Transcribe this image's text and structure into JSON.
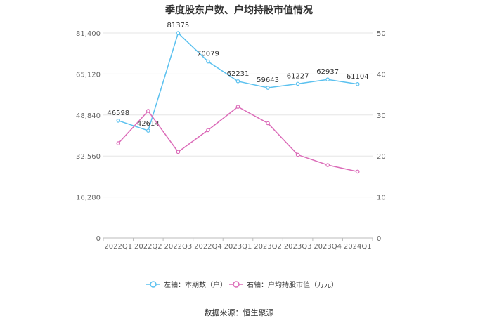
{
  "chart_data": {
    "type": "line",
    "title": "季度股东户数、户均持股市值情况",
    "categories": [
      "2022Q1",
      "2022Q2",
      "2022Q3",
      "2022Q4",
      "2023Q1",
      "2023Q2",
      "2023Q3",
      "2023Q4",
      "2024Q1"
    ],
    "left_axis": {
      "ticks": [
        "0",
        "16,280",
        "32,560",
        "48,840",
        "65,120",
        "81,400"
      ],
      "min": 0,
      "max": 81400
    },
    "right_axis": {
      "ticks": [
        "0",
        "10",
        "20",
        "30",
        "40",
        "50"
      ],
      "min": 0,
      "max": 50
    },
    "grid": true,
    "legend_placement": "bottom",
    "series": [
      {
        "name": "左轴：本期数（户）",
        "axis": "left",
        "color": "#5bc1ef",
        "values": [
          46598,
          42614,
          81375,
          70079,
          62231,
          59643,
          61227,
          62937,
          61104
        ],
        "labels": [
          "46598",
          "42614",
          "81375",
          "70079",
          "62231",
          "59643",
          "61227",
          "62937",
          "61104"
        ]
      },
      {
        "name": "右轴：户均持股市值（万元）",
        "axis": "right",
        "color": "#db6bb8",
        "values": [
          23.1,
          31.0,
          21.0,
          26.3,
          32.0,
          28.0,
          20.3,
          17.8,
          16.2
        ]
      }
    ],
    "source": "数据来源：恒生聚源"
  }
}
